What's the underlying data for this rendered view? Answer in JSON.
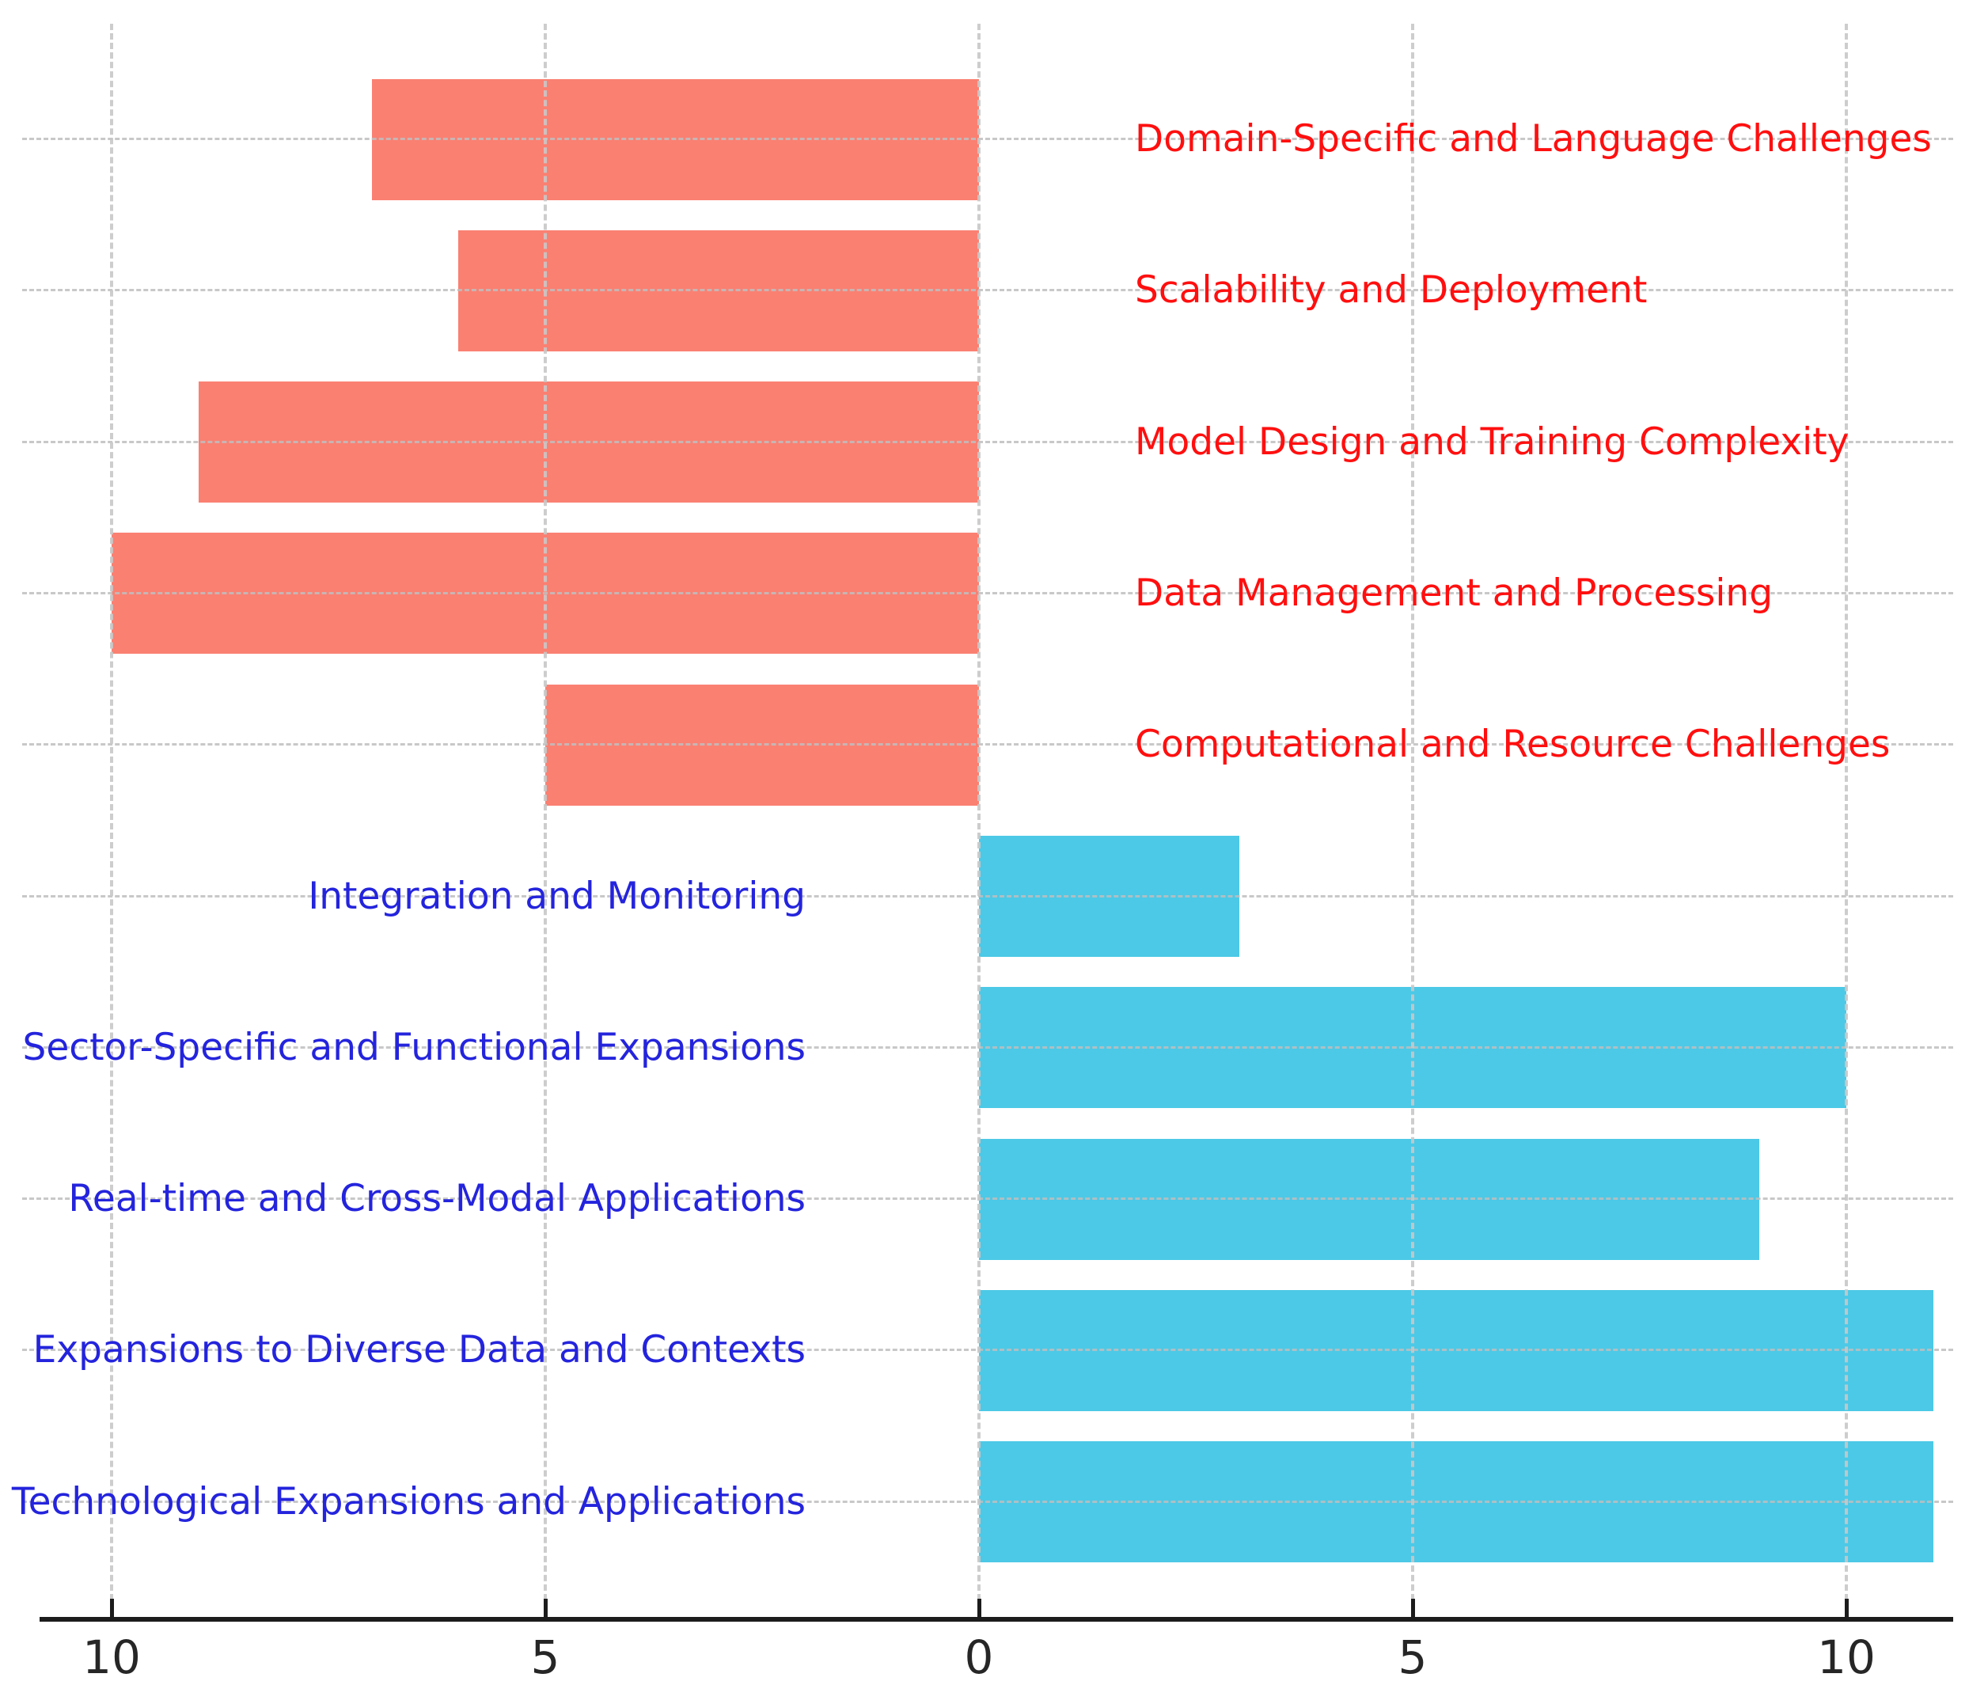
{
  "chart_data": {
    "type": "bar",
    "variant": "diverging-horizontal",
    "title": "",
    "xlabel": "",
    "ylabel": "",
    "legend": "none",
    "x_axis": {
      "ticks": [
        {
          "value": -10,
          "label": "10"
        },
        {
          "value": -5,
          "label": "5"
        },
        {
          "value": 0,
          "label": "0"
        },
        {
          "value": 5,
          "label": "5"
        },
        {
          "value": 10,
          "label": "10"
        }
      ],
      "range": [
        -11.3,
        11.4
      ],
      "grid": "dashed"
    },
    "series": [
      {
        "name": "challenges",
        "direction": "left",
        "bar_color": "#FA8072",
        "label_color": "#FF0F0F",
        "label_side": "right",
        "items": [
          {
            "label": "Domain-Specific and Language Challenges",
            "value": 7
          },
          {
            "label": "Scalability and Deployment",
            "value": 6
          },
          {
            "label": "Model Design and Training Complexity",
            "value": 9
          },
          {
            "label": "Data Management and Processing",
            "value": 10
          },
          {
            "label": "Computational and Resource Challenges",
            "value": 5
          }
        ]
      },
      {
        "name": "future-directions",
        "direction": "right",
        "bar_color": "#4CC9E6",
        "label_color": "#2424DD",
        "label_side": "left",
        "items": [
          {
            "label": "Integration and Monitoring",
            "value": 3
          },
          {
            "label": "Sector-Specific and Functional Expansions",
            "value": 10
          },
          {
            "label": "Real-time and Cross-Modal Applications",
            "value": 9
          },
          {
            "label": "Expansions to Diverse Data and Contexts",
            "value": 11
          },
          {
            "label": "Technological Expansions and Applications",
            "value": 11
          }
        ]
      }
    ],
    "colors": {
      "grid": "#C9C9C9",
      "axis": "#1C1C1C",
      "tick_label": "#262626",
      "background": "#FFFFFF"
    }
  }
}
